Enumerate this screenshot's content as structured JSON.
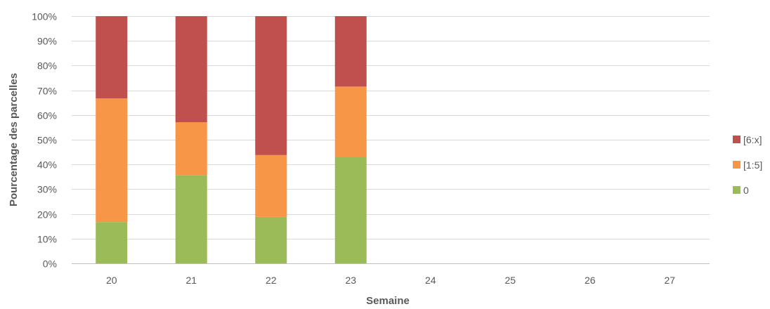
{
  "chart_data": {
    "type": "bar",
    "stacked": true,
    "title": "",
    "xlabel": "Semaine",
    "ylabel": "Pourcentage des parcelles",
    "categories": [
      "20",
      "21",
      "22",
      "23",
      "24",
      "25",
      "26",
      "27"
    ],
    "ylim": [
      0,
      100
    ],
    "yticks": [
      "0%",
      "10%",
      "20%",
      "30%",
      "40%",
      "50%",
      "60%",
      "70%",
      "80%",
      "90%",
      "100%"
    ],
    "grid": true,
    "legend_position": "right",
    "series": [
      {
        "name": "0",
        "color": "#9BBB59",
        "values": [
          16.7,
          35.7,
          18.8,
          42.9,
          null,
          null,
          null,
          null
        ]
      },
      {
        "name": "[1:5]",
        "color": "#F79646",
        "values": [
          50.0,
          21.4,
          25.0,
          28.6,
          null,
          null,
          null,
          null
        ]
      },
      {
        "name": "[6:x]",
        "color": "#C0504D",
        "values": [
          33.3,
          42.9,
          56.2,
          28.5,
          null,
          null,
          null,
          null
        ]
      }
    ],
    "legend_order": [
      "[6:x]",
      "[1:5]",
      "0"
    ]
  }
}
